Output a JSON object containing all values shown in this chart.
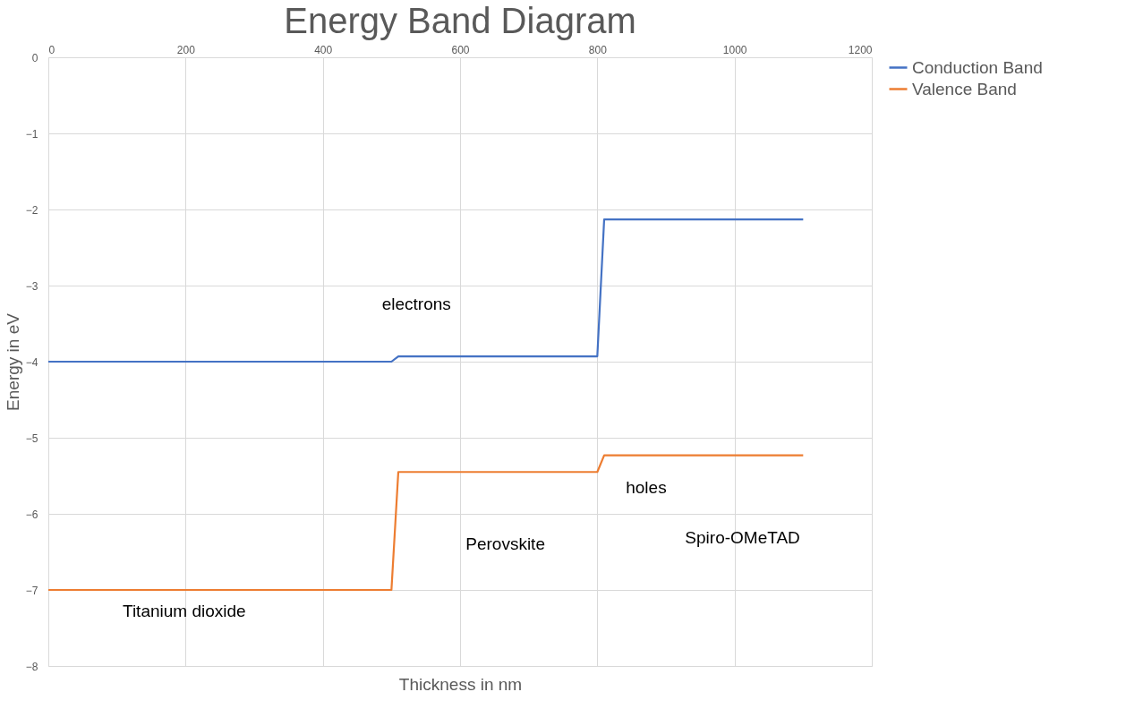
{
  "chart_data": {
    "type": "line",
    "title": "Energy Band Diagram",
    "xlabel": "Thickness in nm",
    "ylabel": "Energy in eV",
    "series": [
      {
        "name": "Conduction Band",
        "color": "#4472c4",
        "x": [
          0,
          500,
          510,
          800,
          810,
          1100
        ],
        "values": [
          -4,
          -4,
          -3.93,
          -3.93,
          -2.13,
          -2.13
        ]
      },
      {
        "name": "Valence Band",
        "color": "#ed7d31",
        "x": [
          0,
          500,
          510,
          800,
          810,
          1100
        ],
        "values": [
          -7,
          -7,
          -5.45,
          -5.45,
          -5.23,
          -5.23
        ]
      }
    ],
    "xlim": [
      0,
      1200
    ],
    "xticks": [
      0,
      200,
      400,
      600,
      800,
      1000,
      1200
    ],
    "ylim": [
      -8,
      0
    ],
    "yticks": [
      -8,
      -7,
      -6,
      -5,
      -4,
      -3,
      -2,
      -1,
      0
    ],
    "grid": true,
    "legend": "right",
    "marker": "none",
    "line_style": "solid",
    "annotations": [
      "electrons",
      "holes",
      "Perovskite",
      "Spiro-OMeTAD",
      "Titanium dioxide"
    ]
  }
}
